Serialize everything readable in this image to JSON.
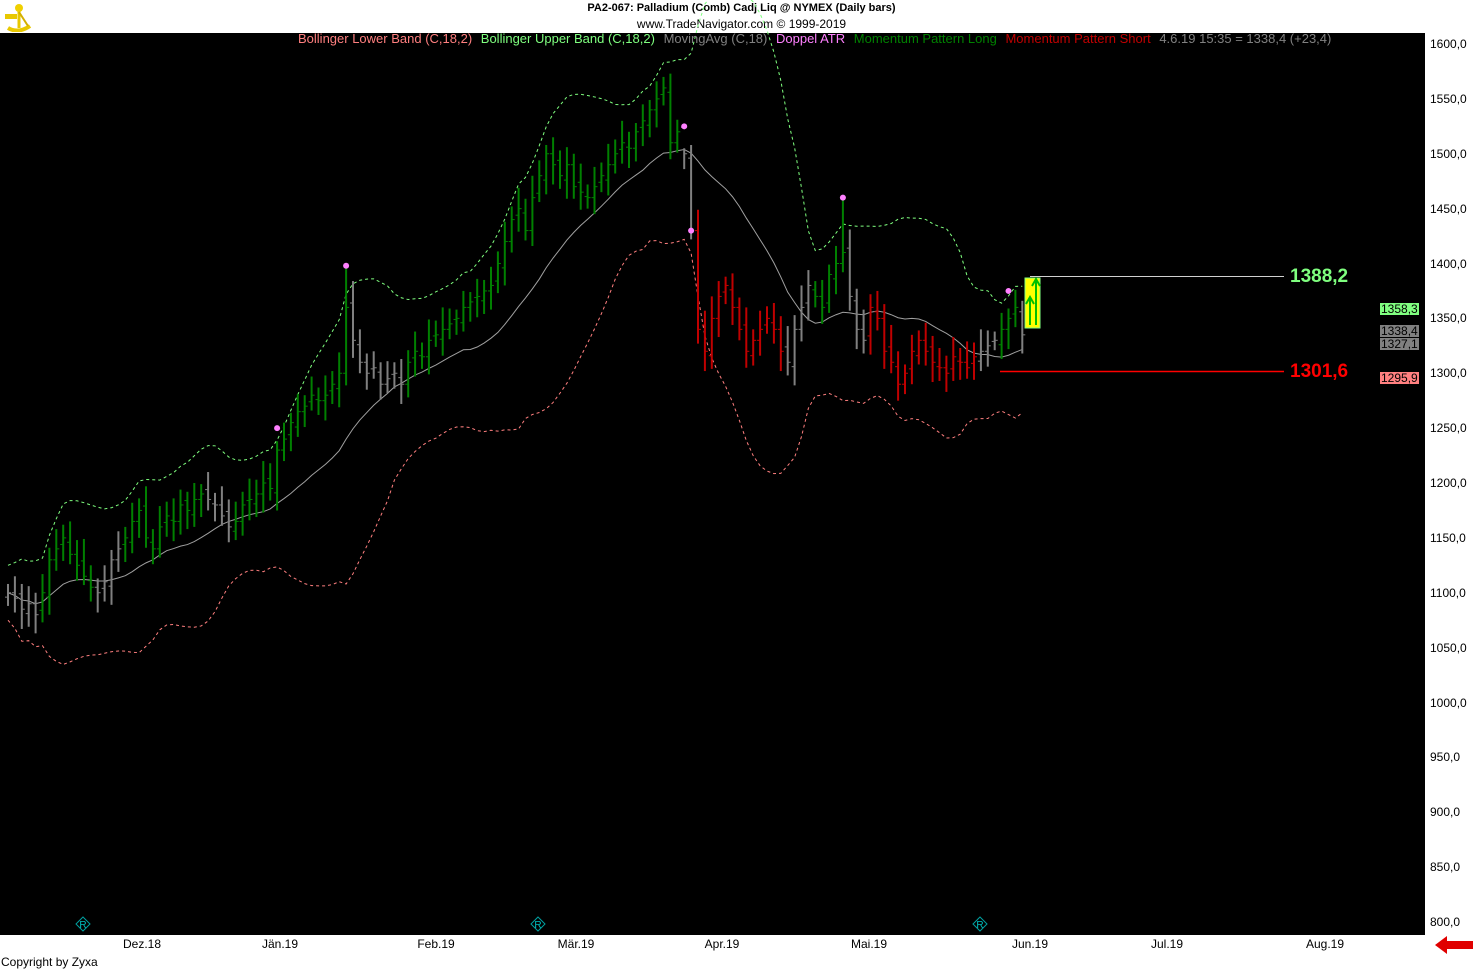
{
  "header": {
    "title": "PA2-067:  Palladium (Comb) Cadj Liq @ NYMEX  (Daily bars)",
    "subtitle": "www.TradeNavigator.com © 1999-2019"
  },
  "legend": [
    {
      "label": "Bollinger Lower Band (C,18,2)",
      "color": "#ff7f7f"
    },
    {
      "label": "Bollinger Upper Band (C,18,2)",
      "color": "#7fff7f"
    },
    {
      "label": "MovingAvg (C,18)",
      "color": "#808080"
    },
    {
      "label": "Doppel ATR",
      "color": "#ff80ff"
    },
    {
      "label": "Momentum Pattern Long",
      "color": "#008000"
    },
    {
      "label": "Momentum Pattern Short",
      "color": "#c00000"
    },
    {
      "label": "4.6.19 15:35 = 1338,4 (+23,4)",
      "color": "#808080"
    }
  ],
  "footer": {
    "copyright": "Copyright by Zyxa"
  },
  "chart_data": {
    "type": "bar",
    "ylim": [
      800,
      1600
    ],
    "y_ticks": [
      "1600,0",
      "1550,0",
      "1500,0",
      "1450,0",
      "1400,0",
      "1350,0",
      "1300,0",
      "1250,0",
      "1200,0",
      "1150,0",
      "1100,0",
      "1050,0",
      "1000,0",
      "950,0",
      "900,0",
      "850,0",
      "800,0"
    ],
    "x_ticks": [
      "Dez.18",
      "Jän.19",
      "Feb.19",
      "Mär.19",
      "Apr.19",
      "Mai.19",
      "Jun.19",
      "Jul.19",
      "Aug.19"
    ],
    "closes": [
      1100,
      1095,
      1085,
      1090,
      1080,
      1100,
      1130,
      1140,
      1150,
      1135,
      1125,
      1115,
      1105,
      1100,
      1110,
      1130,
      1140,
      1150,
      1165,
      1175,
      1150,
      1140,
      1160,
      1170,
      1165,
      1180,
      1175,
      1185,
      1190,
      1185,
      1180,
      1170,
      1160,
      1165,
      1180,
      1185,
      1190,
      1200,
      1195,
      1230,
      1240,
      1255,
      1265,
      1270,
      1280,
      1275,
      1280,
      1290,
      1300,
      1360,
      1330,
      1310,
      1300,
      1305,
      1290,
      1295,
      1300,
      1290,
      1310,
      1320,
      1315,
      1330,
      1335,
      1340,
      1345,
      1350,
      1360,
      1365,
      1370,
      1375,
      1380,
      1400,
      1420,
      1440,
      1450,
      1430,
      1460,
      1480,
      1500,
      1490,
      1480,
      1490,
      1470,
      1465,
      1460,
      1470,
      1480,
      1490,
      1500,
      1510,
      1505,
      1520,
      1530,
      1540,
      1550,
      1560,
      1510,
      1520,
      1500,
      1430,
      1340,
      1320,
      1350,
      1370,
      1380,
      1360,
      1340,
      1320,
      1330,
      1340,
      1350,
      1340,
      1320,
      1310,
      1340,
      1360,
      1380,
      1370,
      1360,
      1390,
      1400,
      1410,
      1370,
      1340,
      1330,
      1360,
      1350,
      1320,
      1310,
      1290,
      1300,
      1320,
      1330,
      1320,
      1310,
      1305,
      1300,
      1315,
      1310,
      1305,
      1315,
      1320,
      1325,
      1330,
      1340,
      1350,
      1360,
      1335
    ],
    "bar_colors": "nnnnnggggggggnnnnggggggggggggnnnnggggggggggggggggg nnnnnnnnggggggggggggggggggggggggggggggggggggggggnnrrrrrrrrrrrrrnnnngggggnnnrrrrrrrrrrrrrrrrnnngggn",
    "color_map": {
      "g": "#008000",
      "r": "#c00000",
      "n": "#808080"
    },
    "spikes": [
      {
        "bar": 49,
        "high": 1398
      },
      {
        "bar": 98,
        "high": 1505
      },
      {
        "bar": 121,
        "high": 1460
      }
    ],
    "doppel_atr_points": [
      {
        "bar": 39,
        "value": 1250
      },
      {
        "bar": 49,
        "value": 1398
      },
      {
        "bar": 98,
        "value": 1525
      },
      {
        "bar": 99,
        "value": 1430
      },
      {
        "bar": 121,
        "value": 1460
      },
      {
        "bar": 145,
        "value": 1375
      }
    ],
    "indicators": {
      "ma_period": 18,
      "bb_period": 18,
      "bb_dev": 2
    },
    "levels": [
      {
        "value": "1388,2",
        "color": "#7fff7f"
      },
      {
        "value": "1301,6",
        "color": "#ff0000"
      }
    ],
    "price_tags": [
      {
        "value": "1358,3",
        "bg": "#80ff80"
      },
      {
        "value": "1338,4",
        "bg": "#808080"
      },
      {
        "value": "1327,1",
        "bg": "#808080"
      },
      {
        "value": "1295,9",
        "bg": "#ff8080"
      }
    ],
    "event_markers": [
      "R",
      "R",
      "R"
    ]
  }
}
